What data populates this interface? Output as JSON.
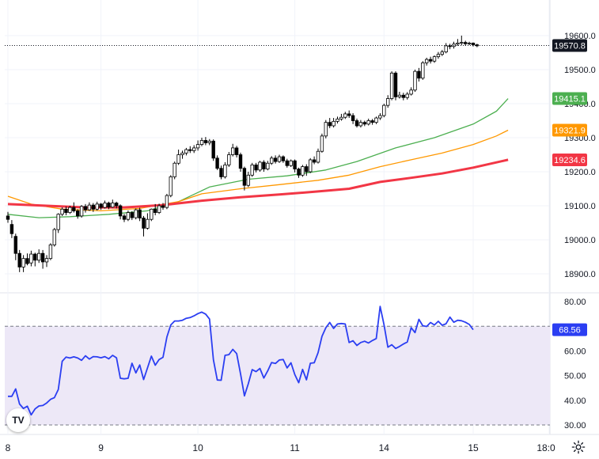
{
  "chart_data": [
    {
      "type": "candlestick",
      "title": "",
      "ylim": [
        18850,
        19630
      ],
      "y_ticks": [
        "19600.0",
        "19500.0",
        "19400.0",
        "19300.0",
        "19200.0",
        "19100.0",
        "19000.0",
        "18900.0"
      ],
      "x_ticks": [
        "8",
        "9",
        "10",
        "11",
        "14",
        "15",
        "18:0"
      ],
      "last_price": 19570.8,
      "last_price_label": "19570.8",
      "grid": true,
      "colors": {
        "up": "#ffffff",
        "down": "#000000",
        "wick": "#000000",
        "ma_fast": "#4caf50",
        "ma_mid": "#ff9800",
        "ma_slow": "#f23645"
      },
      "candles": [
        [
          19070,
          19060,
          19082,
          19050
        ],
        [
          19045,
          19018,
          19058,
          19005
        ],
        [
          19010,
          18960,
          19018,
          18940
        ],
        [
          18960,
          18920,
          18970,
          18905
        ],
        [
          18920,
          18945,
          18955,
          18905
        ],
        [
          18945,
          18930,
          18960,
          18925
        ],
        [
          18932,
          18958,
          18968,
          18922
        ],
        [
          18958,
          18940,
          18962,
          18922
        ],
        [
          18940,
          18960,
          18972,
          18932
        ],
        [
          18960,
          18935,
          18970,
          18915
        ],
        [
          18935,
          18945,
          18955,
          18920
        ],
        [
          18945,
          18985,
          18990,
          18940
        ],
        [
          18985,
          19030,
          19035,
          18980
        ],
        [
          19030,
          19075,
          19078,
          19020
        ],
        [
          19075,
          19090,
          19095,
          19070
        ],
        [
          19090,
          19080,
          19098,
          19072
        ],
        [
          19080,
          19095,
          19100,
          19076
        ],
        [
          19095,
          19085,
          19110,
          19080
        ],
        [
          19085,
          19070,
          19090,
          19062
        ],
        [
          19070,
          19098,
          19102,
          19065
        ],
        [
          19098,
          19088,
          19105,
          19080
        ],
        [
          19088,
          19102,
          19110,
          19085
        ],
        [
          19102,
          19090,
          19108,
          19082
        ],
        [
          19090,
          19105,
          19112,
          19086
        ],
        [
          19105,
          19095,
          19108,
          19088
        ],
        [
          19095,
          19108,
          19115,
          19092
        ],
        [
          19108,
          19096,
          19112,
          19090
        ],
        [
          19096,
          19108,
          19118,
          19094
        ],
        [
          19108,
          19100,
          19112,
          19092
        ],
        [
          19100,
          19070,
          19104,
          19060
        ],
        [
          19070,
          19060,
          19076,
          19052
        ],
        [
          19060,
          19080,
          19086,
          19055
        ],
        [
          19080,
          19065,
          19084,
          19058
        ],
        [
          19065,
          19088,
          19092,
          19060
        ],
        [
          19088,
          19064,
          19094,
          19055
        ],
        [
          19064,
          19034,
          19070,
          19010
        ],
        [
          19034,
          19060,
          19078,
          19030
        ],
        [
          19060,
          19090,
          19092,
          19055
        ],
        [
          19090,
          19080,
          19105,
          19072
        ],
        [
          19080,
          19100,
          19106,
          19076
        ],
        [
          19100,
          19095,
          19108,
          19088
        ],
        [
          19095,
          19130,
          19135,
          19090
        ],
        [
          19130,
          19185,
          19190,
          19125
        ],
        [
          19185,
          19225,
          19230,
          19178
        ],
        [
          19225,
          19250,
          19265,
          19220
        ],
        [
          19250,
          19255,
          19262,
          19238
        ],
        [
          19255,
          19265,
          19270,
          19248
        ],
        [
          19265,
          19262,
          19275,
          19255
        ],
        [
          19262,
          19270,
          19278,
          19255
        ],
        [
          19270,
          19280,
          19292,
          19262
        ],
        [
          19280,
          19292,
          19300,
          19275
        ],
        [
          19292,
          19285,
          19302,
          19278
        ],
        [
          19285,
          19290,
          19296,
          19278
        ],
        [
          19290,
          19240,
          19295,
          19232
        ],
        [
          19240,
          19210,
          19248,
          19205
        ],
        [
          19210,
          19185,
          19218,
          19178
        ],
        [
          19185,
          19220,
          19228,
          19180
        ],
        [
          19220,
          19250,
          19258,
          19214
        ],
        [
          19250,
          19270,
          19282,
          19245
        ],
        [
          19270,
          19250,
          19276,
          19242
        ],
        [
          19250,
          19210,
          19256,
          19200
        ],
        [
          19210,
          19160,
          19215,
          19145
        ],
        [
          19160,
          19190,
          19200,
          19155
        ],
        [
          19190,
          19220,
          19226,
          19185
        ],
        [
          19220,
          19205,
          19226,
          19198
        ],
        [
          19205,
          19228,
          19232,
          19200
        ],
        [
          19228,
          19208,
          19234,
          19200
        ],
        [
          19208,
          19225,
          19232,
          19204
        ],
        [
          19225,
          19240,
          19246,
          19220
        ],
        [
          19240,
          19230,
          19248,
          19224
        ],
        [
          19230,
          19244,
          19250,
          19226
        ],
        [
          19244,
          19232,
          19248,
          19226
        ],
        [
          19232,
          19218,
          19238,
          19212
        ],
        [
          19218,
          19232,
          19236,
          19214
        ],
        [
          19232,
          19208,
          19236,
          19198
        ],
        [
          19208,
          19190,
          19212,
          19182
        ],
        [
          19190,
          19215,
          19220,
          19185
        ],
        [
          19215,
          19200,
          19222,
          19188
        ],
        [
          19200,
          19235,
          19240,
          19196
        ],
        [
          19235,
          19228,
          19245,
          19222
        ],
        [
          19228,
          19260,
          19268,
          19224
        ],
        [
          19260,
          19305,
          19312,
          19256
        ],
        [
          19305,
          19345,
          19352,
          19298
        ],
        [
          19345,
          19335,
          19358,
          19328
        ],
        [
          19335,
          19348,
          19358,
          19330
        ],
        [
          19348,
          19355,
          19362,
          19342
        ],
        [
          19355,
          19360,
          19370,
          19350
        ],
        [
          19360,
          19370,
          19376,
          19355
        ],
        [
          19370,
          19365,
          19380,
          19358
        ],
        [
          19365,
          19350,
          19372,
          19340
        ],
        [
          19350,
          19335,
          19356,
          19330
        ],
        [
          19335,
          19345,
          19352,
          19330
        ],
        [
          19345,
          19340,
          19350,
          19334
        ],
        [
          19340,
          19350,
          19356,
          19336
        ],
        [
          19350,
          19345,
          19355,
          19338
        ],
        [
          19345,
          19358,
          19362,
          19340
        ],
        [
          19358,
          19365,
          19372,
          19352
        ],
        [
          19365,
          19395,
          19400,
          19360
        ],
        [
          19395,
          19415,
          19425,
          19388
        ],
        [
          19415,
          19490,
          19495,
          19410
        ],
        [
          19490,
          19420,
          19495,
          19410
        ],
        [
          19420,
          19425,
          19435,
          19415
        ],
        [
          19425,
          19418,
          19432,
          19410
        ],
        [
          19418,
          19428,
          19434,
          19412
        ],
        [
          19428,
          19440,
          19448,
          19424
        ],
        [
          19440,
          19495,
          19500,
          19435
        ],
        [
          19495,
          19475,
          19505,
          19465
        ],
        [
          19475,
          19520,
          19525,
          19470
        ],
        [
          19520,
          19530,
          19535,
          19512
        ],
        [
          19530,
          19525,
          19538,
          19518
        ],
        [
          19525,
          19538,
          19542,
          19520
        ],
        [
          19538,
          19545,
          19552,
          19532
        ],
        [
          19545,
          19552,
          19558,
          19540
        ],
        [
          19552,
          19570,
          19578,
          19548
        ],
        [
          19570,
          19568,
          19576,
          19560
        ],
        [
          19568,
          19575,
          19582,
          19562
        ],
        [
          19575,
          19578,
          19590,
          19570
        ],
        [
          19578,
          19580,
          19600,
          19572
        ],
        [
          19580,
          19576,
          19585,
          19570
        ],
        [
          19576,
          19578,
          19582,
          19572
        ],
        [
          19578,
          19573,
          19580,
          19568
        ],
        [
          19573,
          19570,
          19576,
          19566
        ]
      ],
      "series": [
        {
          "tag_label": "19415.1",
          "color": "#4caf50",
          "points": [
            [
              0,
              19075
            ],
            [
              8,
              19065
            ],
            [
              16,
              19068
            ],
            [
              26,
              19075
            ],
            [
              36,
              19085
            ],
            [
              44,
              19112
            ],
            [
              52,
              19155
            ],
            [
              62,
              19178
            ],
            [
              72,
              19188
            ],
            [
              82,
              19205
            ],
            [
              90,
              19230
            ],
            [
              100,
              19270
            ],
            [
              110,
              19300
            ],
            [
              120,
              19340
            ],
            [
              126,
              19378
            ],
            [
              129,
              19415
            ]
          ]
        },
        {
          "tag_label": "19321.9",
          "color": "#ff9800",
          "points": [
            [
              0,
              19128
            ],
            [
              6,
              19105
            ],
            [
              14,
              19090
            ],
            [
              24,
              19085
            ],
            [
              34,
              19092
            ],
            [
              44,
              19112
            ],
            [
              50,
              19135
            ],
            [
              60,
              19150
            ],
            [
              70,
              19162
            ],
            [
              80,
              19175
            ],
            [
              88,
              19190
            ],
            [
              96,
              19215
            ],
            [
              104,
              19235
            ],
            [
              112,
              19255
            ],
            [
              120,
              19280
            ],
            [
              126,
              19305
            ],
            [
              129,
              19322
            ]
          ]
        },
        {
          "tag_label": "19234.6",
          "color": "#f23645",
          "points": [
            [
              0,
              19105
            ],
            [
              10,
              19100
            ],
            [
              20,
              19095
            ],
            [
              30,
              19095
            ],
            [
              40,
              19102
            ],
            [
              50,
              19115
            ],
            [
              60,
              19125
            ],
            [
              70,
              19133
            ],
            [
              80,
              19142
            ],
            [
              88,
              19150
            ],
            [
              96,
              19170
            ],
            [
              104,
              19182
            ],
            [
              112,
              19195
            ],
            [
              120,
              19212
            ],
            [
              129,
              19235
            ]
          ]
        }
      ]
    },
    {
      "type": "line",
      "title": "",
      "ylim": [
        30,
        80
      ],
      "y_ticks": [
        "80.00",
        "70.00",
        "60.00",
        "50.00",
        "40.00",
        "30.00"
      ],
      "bands": [
        30,
        70
      ],
      "band_color": "#ede8f7",
      "last_value_label": "68.56",
      "color": "#2b3ef2",
      "series": [
        {
          "name": "",
          "values": [
            41.6,
            41.6,
            44.6,
            38.5,
            36.7,
            37.6,
            34.1,
            36.5,
            37.7,
            37.9,
            38.9,
            40.4,
            41.1,
            44.4,
            55.8,
            57.5,
            57.1,
            57.6,
            57.1,
            56.2,
            58.0,
            56.7,
            57.7,
            57.6,
            57.2,
            57.7,
            56.8,
            58.2,
            57.2,
            48.9,
            48.7,
            48.9,
            55.0,
            51.1,
            54.3,
            48.4,
            53.1,
            57.9,
            54.2,
            56.5,
            57.4,
            65.6,
            70.5,
            72.1,
            72.1,
            72.4,
            73.2,
            73.5,
            74.2,
            75.1,
            75.7,
            74.9,
            72.9,
            56.4,
            48.2,
            48.1,
            58.2,
            58.5,
            60.6,
            58.9,
            50.7,
            41.8,
            46.7,
            52.4,
            51.6,
            52.9,
            49.0,
            51.9,
            55.3,
            54.9,
            56.3,
            56.5,
            53.1,
            55.2,
            50.4,
            47.1,
            52.5,
            48.3,
            55.0,
            55.2,
            59.3,
            65.9,
            69.4,
            71.5,
            69.1,
            70.9,
            71.1,
            70.9,
            63.4,
            64.1,
            62.2,
            63.4,
            63.9,
            63.2,
            64.2,
            65.0,
            78.0,
            70.6,
            61.5,
            62.5,
            61.0,
            61.8,
            62.8,
            63.6,
            69.4,
            67.4,
            72.8,
            70.2,
            69.9,
            71.5,
            70.5,
            72.0,
            70.4,
            71.0,
            73.7,
            71.6,
            72.4,
            72.2,
            71.6,
            70.7,
            68.6
          ]
        }
      ]
    }
  ]
}
